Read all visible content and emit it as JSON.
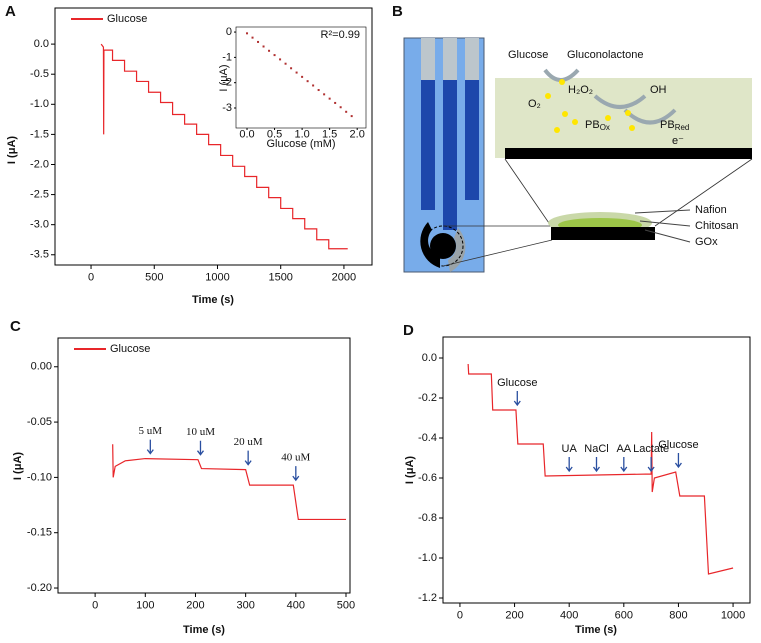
{
  "chart_data": [
    {
      "type": "line",
      "label": "A",
      "x_label": "Time (s)",
      "y_label": "I (μA)",
      "xlim": [
        -285,
        2222
      ],
      "ylim": [
        -3.67,
        0.6
      ],
      "xticks": [
        0,
        500,
        1000,
        1500,
        2000
      ],
      "yticks": [
        {
          "value": 0,
          "label": "0.0"
        },
        -0.5,
        {
          "value": -1,
          "label": "-1.0"
        },
        -1.5,
        {
          "value": -2,
          "label": "-2.0"
        },
        -2.5,
        {
          "value": -3,
          "label": "-3.0"
        },
        -3.5
      ],
      "legend": "upper left",
      "x": [
        80,
        98,
        100,
        102,
        170,
        170,
        265,
        265,
        360,
        360,
        455,
        455,
        550,
        550,
        645,
        645,
        740,
        740,
        835,
        835,
        930,
        930,
        1025,
        1025,
        1120,
        1120,
        1215,
        1215,
        1310,
        1310,
        1405,
        1405,
        1500,
        1500,
        1595,
        1595,
        1690,
        1690,
        1785,
        1785,
        1880,
        1880,
        2030
      ],
      "series": [
        {
          "name": "Glucose",
          "color": "#e8262a",
          "values": [
            0,
            -0.05,
            -1.5,
            -0.1,
            -0.1,
            -0.27,
            -0.27,
            -0.45,
            -0.45,
            -0.62,
            -0.62,
            -0.8,
            -0.8,
            -0.97,
            -0.97,
            -1.17,
            -1.17,
            -1.33,
            -1.33,
            -1.5,
            -1.5,
            -1.67,
            -1.67,
            -1.85,
            -1.85,
            -2.03,
            -2.03,
            -2.2,
            -2.2,
            -2.38,
            -2.38,
            -2.55,
            -2.55,
            -2.73,
            -2.73,
            -2.9,
            -2.9,
            -3.07,
            -3.07,
            -3.25,
            -3.25,
            -3.4,
            -3.4
          ]
        }
      ]
    },
    {
      "type": "scatter",
      "x_label": "Glucose (mM)",
      "y_label": "I (μA)",
      "annotation": "R²=0.99",
      "annotation_color": "#e8262a",
      "xlim": [
        -0.2,
        2.16
      ],
      "ylim": [
        -3.79,
        0.2
      ],
      "xticks": [
        {
          "value": 0,
          "label": "0.0"
        },
        0.5,
        {
          "value": 1,
          "label": "1.0"
        },
        1.5,
        {
          "value": 2,
          "label": "2.0"
        }
      ],
      "yticks": [
        0,
        -1,
        -2,
        -3
      ],
      "x": [
        0,
        0.1,
        0.2,
        0.3,
        0.4,
        0.5,
        0.6,
        0.7,
        0.8,
        0.9,
        1.0,
        1.1,
        1.2,
        1.3,
        1.4,
        1.5,
        1.6,
        1.7,
        1.8,
        1.9
      ],
      "series": [
        {
          "color": "#b03030",
          "values": [
            -0.05,
            -0.22,
            -0.39,
            -0.57,
            -0.74,
            -0.91,
            -1.08,
            -1.25,
            -1.43,
            -1.6,
            -1.77,
            -1.94,
            -2.11,
            -2.29,
            -2.46,
            -2.63,
            -2.8,
            -2.97,
            -3.15,
            -3.32
          ]
        }
      ]
    },
    {
      "type": "line",
      "label": "C",
      "x_label": "Time (s)",
      "y_label": "I (μA)",
      "xlim": [
        -74,
        508
      ],
      "ylim": [
        -0.2045,
        0.026
      ],
      "xticks": [
        0,
        100,
        200,
        300,
        400,
        500
      ],
      "yticks": [
        {
          "value": 0,
          "label": "0.00"
        },
        -0.05,
        {
          "value": -0.1,
          "label": "-0.10"
        },
        -0.15,
        {
          "value": -0.2,
          "label": "-0.20"
        }
      ],
      "legend": "upper left",
      "x": [
        35,
        36,
        40,
        60,
        100,
        205,
        212,
        300,
        308,
        395,
        405,
        500
      ],
      "series": [
        {
          "name": "Glucose",
          "color": "#e8262a",
          "values": [
            -0.07,
            -0.1,
            -0.09,
            -0.085,
            -0.083,
            -0.084,
            -0.092,
            -0.093,
            -0.107,
            -0.107,
            -0.138,
            -0.138
          ]
        }
      ],
      "annotation_color": "#2a4fa0",
      "annotations": [
        {
          "text": "5 uM",
          "x": 110
        },
        {
          "text": "10 uM",
          "x": 210
        },
        {
          "text": "20 uM",
          "x": 305
        },
        {
          "text": "40 uM",
          "x": 400
        }
      ]
    },
    {
      "type": "line",
      "label": "D",
      "x_label": "Time (s)",
      "y_label": "I (μA)",
      "xlim": [
        -62,
        1062
      ],
      "ylim": [
        -1.225,
        0.105
      ],
      "xticks": [
        0,
        200,
        400,
        600,
        800,
        1000
      ],
      "yticks": [
        {
          "value": 0,
          "label": "0.0"
        },
        -0.2,
        -0.4,
        -0.6,
        -0.8,
        {
          "value": -1,
          "label": "-1.0"
        },
        -1.2
      ],
      "x": [
        30,
        32,
        115,
        120,
        205,
        212,
        305,
        312,
        700,
        702,
        704,
        712,
        790,
        805,
        895,
        910,
        1000
      ],
      "series": [
        {
          "color": "#e8262a",
          "values": [
            -0.03,
            -0.08,
            -0.08,
            -0.26,
            -0.26,
            -0.43,
            -0.43,
            -0.59,
            -0.58,
            -0.37,
            -0.67,
            -0.6,
            -0.57,
            -0.69,
            -0.69,
            -1.08,
            -1.05
          ]
        }
      ],
      "annotation_color": "#2a4fa0",
      "annotations": [
        {
          "text": "Glucose",
          "x": 210
        },
        {
          "text": "UA",
          "x": 400
        },
        {
          "text": "NaCl",
          "x": 500
        },
        {
          "text": "AA",
          "x": 600
        },
        {
          "text": "Lactate",
          "x": 700
        },
        {
          "text": "Glucose",
          "x": 800
        }
      ]
    }
  ],
  "diagram": {
    "label": "B",
    "labels": [
      {
        "text": "Glucose"
      },
      {
        "text": "Gluconolactone"
      },
      {
        "text": "O₂"
      },
      {
        "text": "H₂O₂"
      },
      {
        "text": "OH"
      },
      {
        "text": "PB",
        "sub": "Ox"
      },
      {
        "text": "PB",
        "sub": "Red"
      },
      {
        "text": "e⁻"
      },
      {
        "text": "Nafion"
      },
      {
        "text": "Chitosan"
      },
      {
        "text": "GOx"
      }
    ]
  }
}
